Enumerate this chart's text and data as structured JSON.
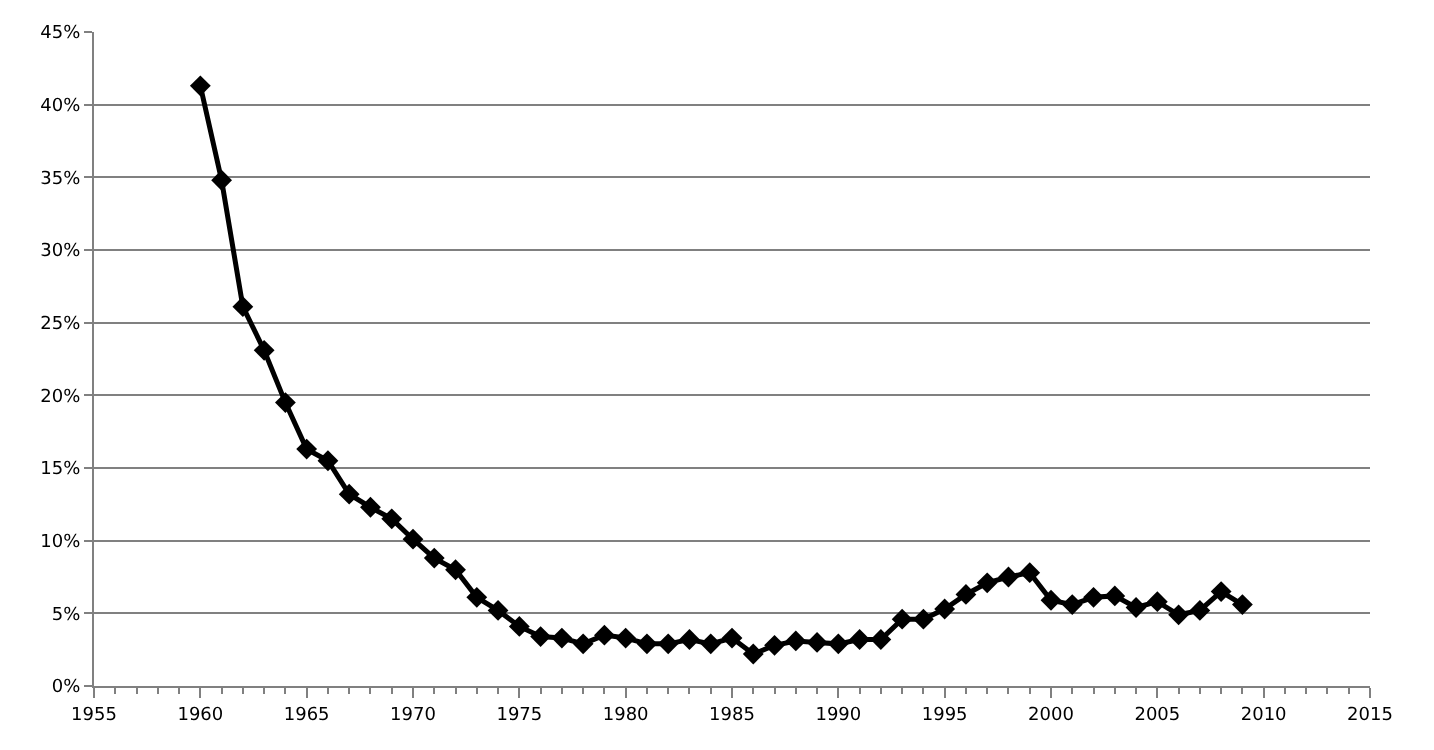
{
  "chart_data": {
    "type": "line",
    "x": [
      1960,
      1961,
      1962,
      1963,
      1964,
      1965,
      1966,
      1967,
      1968,
      1969,
      1970,
      1971,
      1972,
      1973,
      1974,
      1975,
      1976,
      1977,
      1978,
      1979,
      1980,
      1981,
      1982,
      1983,
      1984,
      1985,
      1986,
      1987,
      1988,
      1989,
      1990,
      1991,
      1992,
      1993,
      1994,
      1995,
      1996,
      1997,
      1998,
      1999,
      2000,
      2001,
      2002,
      2003,
      2004,
      2005,
      2006,
      2007,
      2008,
      2009
    ],
    "series": [
      {
        "color": "#000000",
        "values": [
          41.3,
          34.8,
          26.1,
          23.1,
          19.5,
          16.3,
          15.5,
          13.2,
          12.3,
          11.5,
          10.1,
          8.8,
          8.0,
          6.1,
          5.2,
          4.1,
          3.4,
          3.3,
          2.9,
          3.5,
          3.3,
          2.9,
          2.9,
          3.2,
          2.9,
          3.3,
          2.2,
          2.8,
          3.1,
          3.0,
          2.9,
          3.2,
          3.2,
          4.6,
          4.6,
          5.3,
          6.3,
          7.1,
          7.5,
          7.8,
          5.9,
          5.6,
          6.1,
          6.2,
          5.4,
          5.8,
          4.9,
          5.2,
          6.5,
          5.6
        ]
      }
    ],
    "xlim": [
      1955,
      2015
    ],
    "xticks": [
      1955,
      1960,
      1965,
      1970,
      1975,
      1980,
      1985,
      1990,
      1995,
      2000,
      2005,
      2010,
      2015
    ],
    "ylim": [
      0,
      45
    ],
    "yticks": [
      {
        "value": 0,
        "label": "0%"
      },
      {
        "value": 5,
        "label": "5%"
      },
      {
        "value": 10,
        "label": "10%"
      },
      {
        "value": 15,
        "label": "15%"
      },
      {
        "value": 20,
        "label": "20%"
      },
      {
        "value": 25,
        "label": "25%"
      },
      {
        "value": 30,
        "label": "30%"
      },
      {
        "value": 35,
        "label": "35%"
      },
      {
        "value": 40,
        "label": "40%"
      },
      {
        "value": 45,
        "label": "45%"
      }
    ],
    "grid": "y",
    "marker": "diamond",
    "line_style": "solid"
  }
}
